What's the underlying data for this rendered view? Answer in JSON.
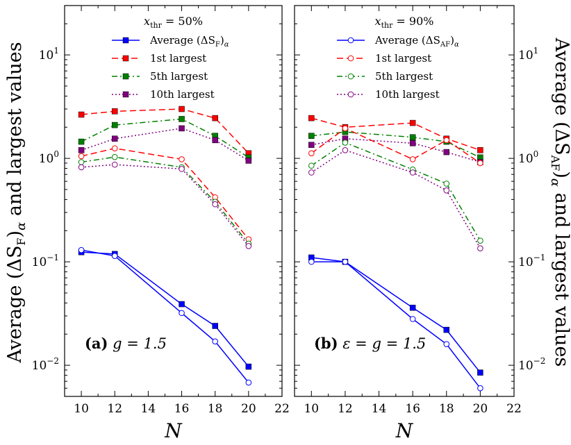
{
  "chart_data": [
    {
      "type": "line",
      "panel": "left",
      "yscale": "log",
      "title": "x_thr = 50%",
      "title_parts": {
        "var": "x",
        "sub": "thr",
        "rest": " = 50%"
      },
      "panel_label": {
        "bold": "(a)",
        "text": "g = 1.5"
      },
      "xlabel": "N",
      "ylabel": {
        "pre": "Average (ΔS",
        "sub": "F",
        "post": ")",
        "alpha": "α",
        "tail": " and largest values"
      },
      "xlim": [
        9,
        22
      ],
      "ylim": [
        0.005,
        30
      ],
      "x_ticks": [
        "10",
        "12",
        "14",
        "16",
        "18",
        "20",
        "22"
      ],
      "y_ticks": [
        {
          "value": 0.01,
          "base": "10",
          "exp": "−2"
        },
        {
          "value": 0.1,
          "base": "10",
          "exp": "−1"
        },
        {
          "value": 1,
          "base": "10",
          "exp": "0"
        },
        {
          "value": 10,
          "base": "10",
          "exp": "1"
        }
      ],
      "legend": [
        {
          "label_pre": "Average (ΔS",
          "label_sub": "F",
          "label_post": ")",
          "label_alpha": "α",
          "color": "#0000ff",
          "dash": "solid",
          "marker": "square"
        },
        {
          "label": "1st largest",
          "color": "#ff0000",
          "dash": "dashed",
          "marker": "square"
        },
        {
          "label": "5th largest",
          "color": "#008000",
          "dash": "dashdot",
          "marker": "square"
        },
        {
          "label": "10th largest",
          "color": "#800080",
          "dash": "dotted",
          "marker": "square"
        }
      ],
      "series": [
        {
          "name": "Average",
          "marker": "square",
          "color": "#0000ff",
          "dash": "solid",
          "x": [
            10,
            12,
            16,
            18,
            20
          ],
          "values": [
            0.124,
            0.119,
            0.039,
            0.024,
            0.0097
          ]
        },
        {
          "name": "1st largest",
          "marker": "square",
          "color": "#ff0000",
          "dash": "dashed",
          "x": [
            10,
            12,
            16,
            18,
            20
          ],
          "values": [
            2.65,
            2.85,
            3.0,
            2.45,
            1.12
          ]
        },
        {
          "name": "5th largest",
          "marker": "square",
          "color": "#008000",
          "dash": "dashdot",
          "x": [
            10,
            12,
            16,
            18,
            20
          ],
          "values": [
            1.45,
            2.1,
            2.4,
            1.65,
            1.02
          ]
        },
        {
          "name": "10th largest",
          "marker": "square",
          "color": "#800080",
          "dash": "dotted",
          "x": [
            10,
            12,
            16,
            18,
            20
          ],
          "values": [
            1.2,
            1.55,
            1.95,
            1.5,
            0.95
          ]
        },
        {
          "name": "Average",
          "marker": "circle",
          "color": "#0000ff",
          "dash": "solid",
          "x": [
            10,
            12,
            16,
            18,
            20
          ],
          "values": [
            0.13,
            0.114,
            0.032,
            0.017,
            0.0068
          ]
        },
        {
          "name": "1st largest",
          "marker": "circle",
          "color": "#ff0000",
          "dash": "dashed",
          "x": [
            10,
            12,
            16,
            18,
            20
          ],
          "values": [
            1.05,
            1.25,
            0.98,
            0.42,
            0.165
          ]
        },
        {
          "name": "5th largest",
          "marker": "circle",
          "color": "#008000",
          "dash": "dashdot",
          "x": [
            10,
            12,
            16,
            18,
            20
          ],
          "values": [
            0.92,
            1.03,
            0.82,
            0.38,
            0.15
          ]
        },
        {
          "name": "10th largest",
          "marker": "circle",
          "color": "#800080",
          "dash": "dotted",
          "x": [
            10,
            12,
            16,
            18,
            20
          ],
          "values": [
            0.82,
            0.87,
            0.79,
            0.36,
            0.142
          ]
        }
      ]
    },
    {
      "type": "line",
      "panel": "right",
      "yscale": "log",
      "title": "x_thr = 90%",
      "title_parts": {
        "var": "x",
        "sub": "thr",
        "rest": " = 90%"
      },
      "panel_label": {
        "bold": "(b)",
        "text": "ε = g = 1.5"
      },
      "xlabel": "N",
      "ylabel": {
        "pre": "Average (ΔS",
        "sub": "AF",
        "post": ")",
        "alpha": "α",
        "tail": " and largest values"
      },
      "xlim": [
        9,
        22
      ],
      "ylim": [
        0.005,
        30
      ],
      "x_ticks": [
        "10",
        "12",
        "14",
        "16",
        "18",
        "20",
        "22"
      ],
      "y_ticks": [
        {
          "value": 0.01,
          "base": "10",
          "exp": "−2"
        },
        {
          "value": 0.1,
          "base": "10",
          "exp": "−1"
        },
        {
          "value": 1,
          "base": "10",
          "exp": "0"
        },
        {
          "value": 10,
          "base": "10",
          "exp": "1"
        }
      ],
      "legend": [
        {
          "label_pre": "Average (ΔS",
          "label_sub": "AF",
          "label_post": ")",
          "label_alpha": "α",
          "color": "#0000ff",
          "dash": "solid",
          "marker": "circle"
        },
        {
          "label": "1st largest",
          "color": "#ff0000",
          "dash": "dashed",
          "marker": "circle"
        },
        {
          "label": "5th largest",
          "color": "#008000",
          "dash": "dashdot",
          "marker": "circle"
        },
        {
          "label": "10th largest",
          "color": "#800080",
          "dash": "dotted",
          "marker": "circle"
        }
      ],
      "series": [
        {
          "name": "Average",
          "marker": "square",
          "color": "#0000ff",
          "dash": "solid",
          "x": [
            10,
            12,
            16,
            18,
            20
          ],
          "values": [
            0.11,
            0.1,
            0.036,
            0.022,
            0.0085
          ]
        },
        {
          "name": "1st largest",
          "marker": "square",
          "color": "#ff0000",
          "dash": "dashed",
          "x": [
            10,
            12,
            16,
            18,
            20
          ],
          "values": [
            2.45,
            2.0,
            2.2,
            1.55,
            1.2
          ]
        },
        {
          "name": "5th largest",
          "marker": "square",
          "color": "#008000",
          "dash": "dashdot",
          "x": [
            10,
            12,
            16,
            18,
            20
          ],
          "values": [
            1.65,
            1.8,
            1.6,
            1.45,
            1.02
          ]
        },
        {
          "name": "10th largest",
          "marker": "square",
          "color": "#800080",
          "dash": "dotted",
          "x": [
            10,
            12,
            16,
            18,
            20
          ],
          "values": [
            1.35,
            1.55,
            1.4,
            1.15,
            0.92
          ]
        },
        {
          "name": "Average",
          "marker": "circle",
          "color": "#0000ff",
          "dash": "solid",
          "x": [
            10,
            12,
            16,
            18,
            20
          ],
          "values": [
            0.1,
            0.1,
            0.028,
            0.016,
            0.006
          ]
        },
        {
          "name": "1st largest",
          "marker": "circle",
          "color": "#ff0000",
          "dash": "dashed",
          "x": [
            10,
            12,
            16,
            18,
            20
          ],
          "values": [
            1.12,
            1.95,
            0.98,
            1.5,
            0.9
          ]
        },
        {
          "name": "5th largest",
          "marker": "circle",
          "color": "#008000",
          "dash": "dashdot",
          "x": [
            10,
            12,
            16,
            18,
            20
          ],
          "values": [
            0.85,
            1.42,
            0.78,
            0.57,
            0.16
          ]
        },
        {
          "name": "10th largest",
          "marker": "circle",
          "color": "#800080",
          "dash": "dotted",
          "x": [
            10,
            12,
            16,
            18,
            20
          ],
          "values": [
            0.73,
            1.2,
            0.73,
            0.49,
            0.135
          ]
        }
      ]
    }
  ]
}
